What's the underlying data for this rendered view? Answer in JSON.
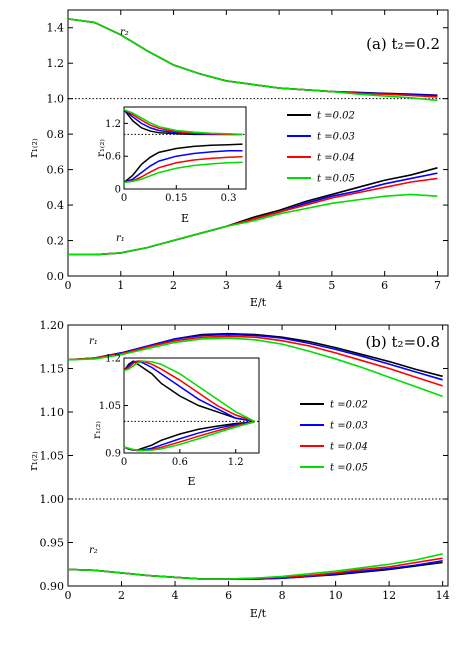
{
  "chart_data": [
    {
      "type": "line",
      "panel_label": "(a) t₂=0.2",
      "xlabel": "E/t",
      "ylabel": "r₁₍₂₎",
      "xlim": [
        0,
        7.2
      ],
      "ylim": [
        0,
        1.5
      ],
      "xticks": [
        "0",
        "1",
        "2",
        "3",
        "4",
        "5",
        "6",
        "7"
      ],
      "yticks": [
        "0.0",
        "0.2",
        "0.4",
        "0.6",
        "0.8",
        "1.0",
        "1.2",
        "1.4"
      ],
      "reference_line": 1.0,
      "curve_labels": [
        "r₂",
        "r₁"
      ],
      "legend_entries": [
        "t =0.02",
        "t =0.03",
        "t =0.04",
        "t =0.05"
      ],
      "colors": [
        "#000000",
        "#0000ff",
        "#ff0000",
        "#00dd00"
      ],
      "series": [
        {
          "name": "t =0.02",
          "x": [
            0,
            0.5,
            1,
            1.5,
            2,
            2.5,
            3,
            3.5,
            4,
            4.5,
            5,
            5.5,
            6,
            6.5,
            7
          ],
          "r2": [
            1.45,
            1.43,
            1.36,
            1.27,
            1.19,
            1.14,
            1.1,
            1.08,
            1.06,
            1.05,
            1.04,
            1.035,
            1.03,
            1.025,
            1.02
          ],
          "r1": [
            0.12,
            0.12,
            0.13,
            0.16,
            0.2,
            0.24,
            0.28,
            0.33,
            0.37,
            0.42,
            0.46,
            0.5,
            0.54,
            0.57,
            0.61
          ]
        },
        {
          "name": "t =0.03",
          "x": [
            0,
            0.5,
            1,
            1.5,
            2,
            2.5,
            3,
            3.5,
            4,
            4.5,
            5,
            5.5,
            6,
            6.5,
            7
          ],
          "r2": [
            1.45,
            1.43,
            1.36,
            1.27,
            1.19,
            1.14,
            1.1,
            1.08,
            1.06,
            1.05,
            1.04,
            1.033,
            1.028,
            1.022,
            1.018
          ],
          "r1": [
            0.12,
            0.12,
            0.13,
            0.16,
            0.2,
            0.24,
            0.28,
            0.32,
            0.36,
            0.41,
            0.45,
            0.48,
            0.52,
            0.55,
            0.58
          ]
        },
        {
          "name": "t =0.04",
          "x": [
            0,
            0.5,
            1,
            1.5,
            2,
            2.5,
            3,
            3.5,
            4,
            4.5,
            5,
            5.5,
            6,
            6.5,
            7
          ],
          "r2": [
            1.45,
            1.43,
            1.36,
            1.27,
            1.19,
            1.14,
            1.1,
            1.08,
            1.06,
            1.05,
            1.04,
            1.03,
            1.025,
            1.018,
            1.01
          ],
          "r1": [
            0.12,
            0.12,
            0.13,
            0.16,
            0.2,
            0.24,
            0.28,
            0.32,
            0.36,
            0.4,
            0.44,
            0.47,
            0.5,
            0.53,
            0.55
          ]
        },
        {
          "name": "t =0.05",
          "x": [
            0,
            0.5,
            1,
            1.5,
            2,
            2.5,
            3,
            3.5,
            4,
            4.5,
            5,
            5.5,
            6,
            6.5,
            7
          ],
          "r2": [
            1.45,
            1.43,
            1.36,
            1.27,
            1.19,
            1.14,
            1.1,
            1.08,
            1.06,
            1.05,
            1.04,
            1.025,
            1.015,
            1.005,
            0.99
          ],
          "r1": [
            0.12,
            0.12,
            0.13,
            0.16,
            0.2,
            0.24,
            0.28,
            0.31,
            0.35,
            0.38,
            0.41,
            0.43,
            0.45,
            0.46,
            0.45
          ]
        }
      ],
      "inset": {
        "xlabel": "E",
        "ylabel": "r₁₍₂₎",
        "xlim": [
          0,
          0.35
        ],
        "ylim": [
          0.0,
          1.5
        ],
        "xticks": [
          "0",
          "0.15",
          "0.3"
        ],
        "yticks": [
          "0",
          "0.6",
          "1.2"
        ],
        "reference_line": 1.0,
        "x": [
          0,
          0.025,
          0.05,
          0.075,
          0.1,
          0.15,
          0.2,
          0.25,
          0.3,
          0.34
        ],
        "series": [
          {
            "name": "t =0.02",
            "r2": [
              1.45,
              1.25,
              1.12,
              1.06,
              1.03,
              1.01,
              1.0,
              1.0,
              1.0,
              1.0
            ],
            "r1": [
              0.12,
              0.25,
              0.45,
              0.58,
              0.67,
              0.74,
              0.78,
              0.8,
              0.81,
              0.82
            ]
          },
          {
            "name": "t =0.03",
            "r2": [
              1.45,
              1.32,
              1.2,
              1.12,
              1.07,
              1.03,
              1.01,
              1.0,
              1.0,
              1.0
            ],
            "r1": [
              0.12,
              0.18,
              0.3,
              0.42,
              0.51,
              0.6,
              0.65,
              0.68,
              0.7,
              0.7
            ]
          },
          {
            "name": "t =0.04",
            "r2": [
              1.45,
              1.36,
              1.26,
              1.17,
              1.11,
              1.05,
              1.02,
              1.01,
              1.0,
              1.0
            ],
            "r1": [
              0.12,
              0.15,
              0.22,
              0.31,
              0.39,
              0.48,
              0.53,
              0.56,
              0.58,
              0.59
            ]
          },
          {
            "name": "t =0.05",
            "r2": [
              1.45,
              1.39,
              1.3,
              1.21,
              1.14,
              1.07,
              1.04,
              1.02,
              1.01,
              1.0
            ],
            "r1": [
              0.12,
              0.14,
              0.18,
              0.24,
              0.3,
              0.38,
              0.43,
              0.46,
              0.48,
              0.49
            ]
          }
        ]
      }
    },
    {
      "type": "line",
      "panel_label": "(b) t₂=0.8",
      "xlabel": "E/t",
      "ylabel": "r₁₍₂₎",
      "xlim": [
        0,
        14.2
      ],
      "ylim": [
        0.9,
        1.2
      ],
      "xticks": [
        "0",
        "2",
        "4",
        "6",
        "8",
        "10",
        "12",
        "14"
      ],
      "yticks": [
        "0.90",
        "0.95",
        "1.00",
        "1.05",
        "1.10",
        "1.15",
        "1.20"
      ],
      "reference_line": 1.0,
      "curve_labels": [
        "r₁",
        "r₂"
      ],
      "legend_entries": [
        "t =0.02",
        "t =0.03",
        "t =0.04",
        "t =0.05"
      ],
      "colors": [
        "#000000",
        "#0000ff",
        "#ff0000",
        "#00dd00"
      ],
      "series": [
        {
          "name": "t =0.02",
          "x": [
            0,
            1,
            2,
            3,
            4,
            5,
            6,
            7,
            8,
            9,
            10,
            11,
            12,
            13,
            14
          ],
          "r1": [
            1.16,
            1.162,
            1.168,
            1.176,
            1.184,
            1.189,
            1.19,
            1.189,
            1.186,
            1.181,
            1.174,
            1.166,
            1.158,
            1.149,
            1.141
          ],
          "r2": [
            0.919,
            0.918,
            0.915,
            0.912,
            0.91,
            0.908,
            0.908,
            0.908,
            0.909,
            0.911,
            0.913,
            0.916,
            0.919,
            0.923,
            0.927
          ]
        },
        {
          "name": "t =0.03",
          "x": [
            0,
            1,
            2,
            3,
            4,
            5,
            6,
            7,
            8,
            9,
            10,
            11,
            12,
            13,
            14
          ],
          "r1": [
            1.16,
            1.162,
            1.168,
            1.176,
            1.184,
            1.188,
            1.189,
            1.188,
            1.185,
            1.179,
            1.172,
            1.164,
            1.155,
            1.146,
            1.137
          ],
          "r2": [
            0.919,
            0.918,
            0.915,
            0.912,
            0.91,
            0.908,
            0.908,
            0.908,
            0.909,
            0.911,
            0.914,
            0.917,
            0.92,
            0.924,
            0.929
          ]
        },
        {
          "name": "t =0.04",
          "x": [
            0,
            1,
            2,
            3,
            4,
            5,
            6,
            7,
            8,
            9,
            10,
            11,
            12,
            13,
            14
          ],
          "r1": [
            1.16,
            1.162,
            1.167,
            1.175,
            1.182,
            1.186,
            1.187,
            1.186,
            1.182,
            1.176,
            1.168,
            1.159,
            1.15,
            1.14,
            1.13
          ],
          "r2": [
            0.919,
            0.918,
            0.915,
            0.912,
            0.91,
            0.908,
            0.908,
            0.909,
            0.91,
            0.912,
            0.915,
            0.919,
            0.922,
            0.927,
            0.932
          ]
        },
        {
          "name": "t =0.05",
          "x": [
            0,
            1,
            2,
            3,
            4,
            5,
            6,
            7,
            8,
            9,
            10,
            11,
            12,
            13,
            14
          ],
          "r1": [
            1.16,
            1.161,
            1.166,
            1.173,
            1.18,
            1.184,
            1.185,
            1.183,
            1.178,
            1.17,
            1.161,
            1.151,
            1.14,
            1.129,
            1.118
          ],
          "r2": [
            0.919,
            0.918,
            0.915,
            0.912,
            0.91,
            0.908,
            0.908,
            0.909,
            0.911,
            0.914,
            0.917,
            0.921,
            0.925,
            0.93,
            0.937
          ]
        }
      ],
      "inset": {
        "xlabel": "E",
        "ylabel": "r₁₍₂₎",
        "xlim": [
          0,
          1.45
        ],
        "ylim": [
          0.9,
          1.2
        ],
        "xticks": [
          "0",
          "0.6",
          "1.2"
        ],
        "yticks": [
          "0.9",
          "1.05",
          "1.2"
        ],
        "reference_line": 1.0,
        "x": [
          0,
          0.05,
          0.1,
          0.15,
          0.2,
          0.3,
          0.4,
          0.6,
          0.8,
          1.0,
          1.2,
          1.4
        ],
        "series": [
          {
            "name": "t =0.02",
            "r1": [
              1.16,
              1.18,
              1.19,
              1.18,
              1.17,
              1.15,
              1.12,
              1.08,
              1.05,
              1.03,
              1.01,
              1.0
            ],
            "r2": [
              0.919,
              0.912,
              0.909,
              0.91,
              0.915,
              0.925,
              0.94,
              0.96,
              0.975,
              0.985,
              0.993,
              0.998
            ]
          },
          {
            "name": "t =0.03",
            "r1": [
              1.16,
              1.175,
              1.188,
              1.19,
              1.185,
              1.17,
              1.15,
              1.11,
              1.07,
              1.04,
              1.01,
              1.0
            ],
            "r2": [
              0.919,
              0.913,
              0.909,
              0.908,
              0.91,
              0.915,
              0.925,
              0.945,
              0.963,
              0.978,
              0.99,
              0.998
            ]
          },
          {
            "name": "t =0.04",
            "r1": [
              1.16,
              1.17,
              1.183,
              1.19,
              1.19,
              1.18,
              1.165,
              1.13,
              1.09,
              1.05,
              1.02,
              1.0
            ],
            "r2": [
              0.919,
              0.914,
              0.91,
              0.908,
              0.908,
              0.911,
              0.918,
              0.935,
              0.953,
              0.97,
              0.986,
              0.998
            ]
          },
          {
            "name": "t =0.05",
            "r1": [
              1.16,
              1.165,
              1.175,
              1.185,
              1.19,
              1.188,
              1.18,
              1.15,
              1.11,
              1.07,
              1.03,
              1.0
            ],
            "r2": [
              0.919,
              0.915,
              0.911,
              0.909,
              0.908,
              0.909,
              0.913,
              0.927,
              0.945,
              0.964,
              0.982,
              0.998
            ]
          }
        ]
      }
    }
  ]
}
